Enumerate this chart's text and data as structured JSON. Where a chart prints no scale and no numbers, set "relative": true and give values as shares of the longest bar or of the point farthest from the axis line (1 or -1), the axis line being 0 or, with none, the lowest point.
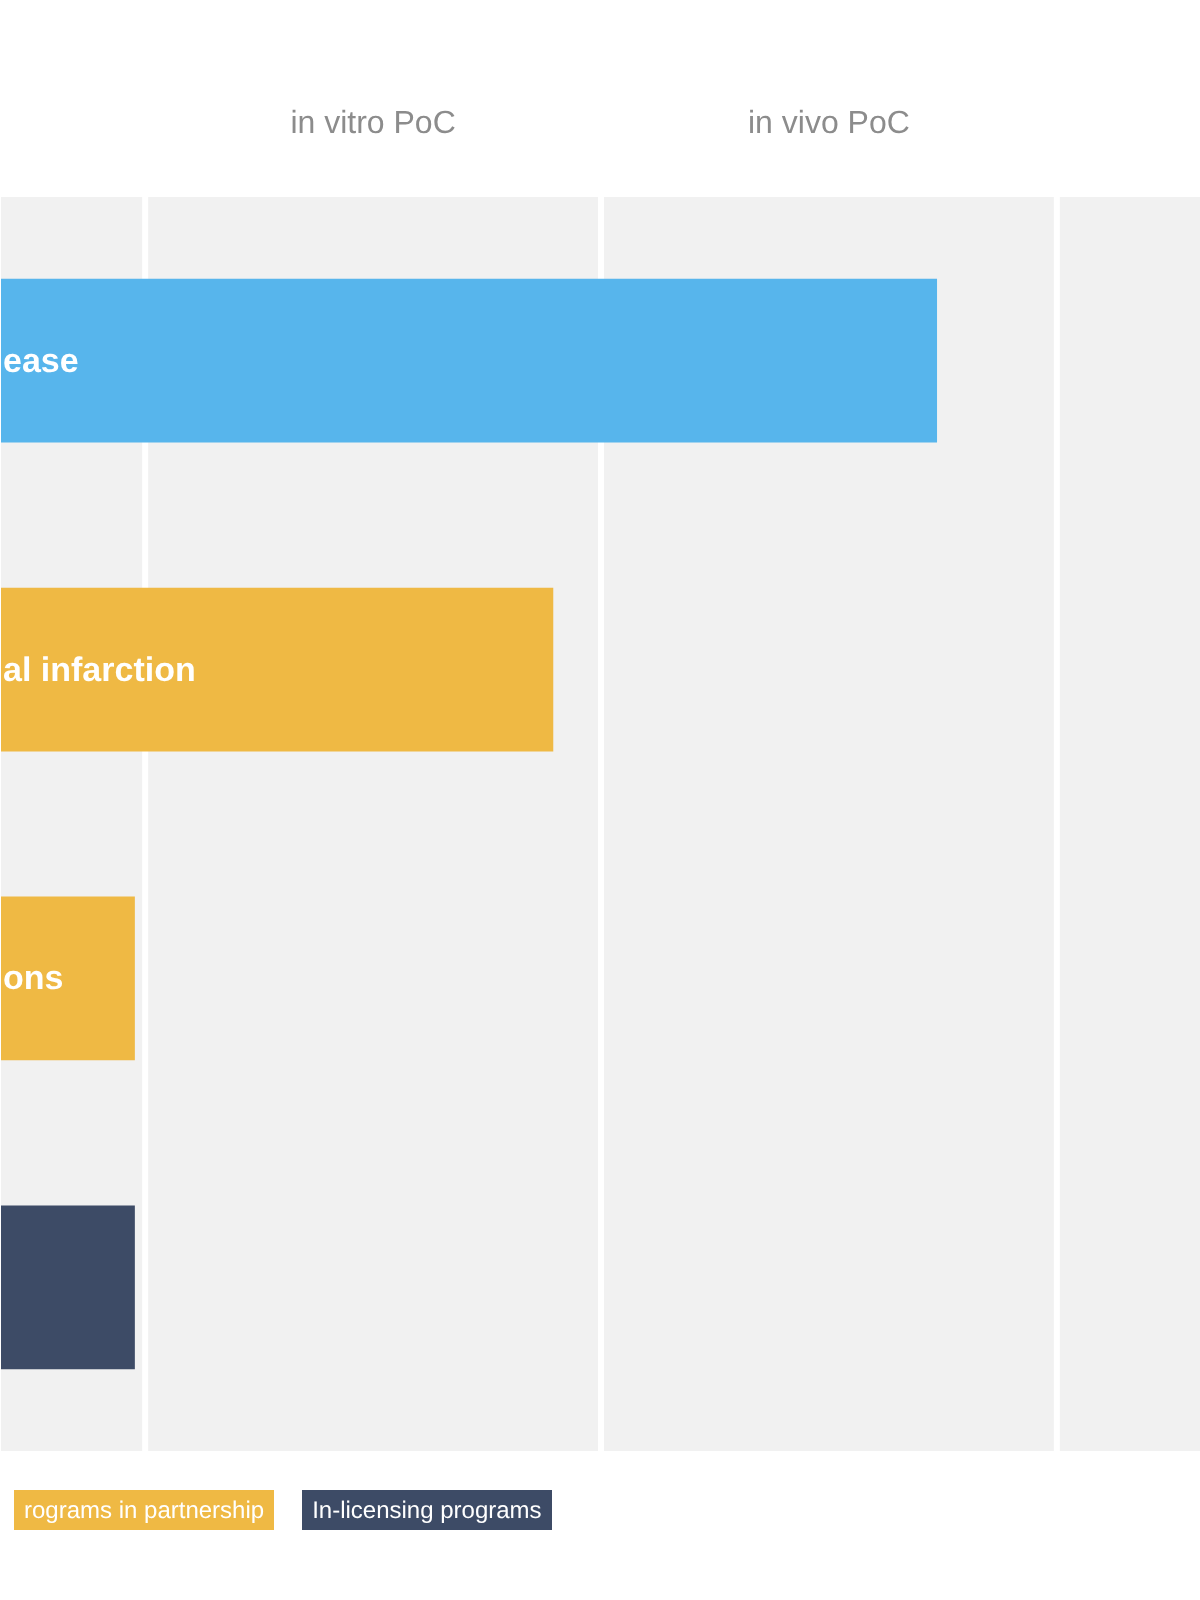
{
  "chart_data": {
    "type": "bar",
    "orientation": "horizontal",
    "relative": true,
    "categories": [
      "ease",
      "al infarction",
      "ons",
      null
    ],
    "series": [
      {
        "color": "#57b5ec",
        "values": [
          1,
          null,
          null,
          null
        ]
      },
      {
        "name": "rograms in partnership",
        "color": "#efb944",
        "values": [
          null,
          0.59,
          0.143,
          null
        ]
      },
      {
        "name": "In-licensing programs",
        "color": "#3d4b66",
        "values": [
          null,
          null,
          null,
          0.143
        ]
      }
    ],
    "ref_lines": [
      {
        "axis": "x",
        "value": 0.154,
        "color": "#ffffff"
      },
      {
        "axis": "x",
        "value": 0.641,
        "color": "#ffffff"
      },
      {
        "axis": "x",
        "value": 1.128,
        "color": "#ffffff"
      }
    ],
    "annotations": [
      "in vitro PoC",
      "in vivo PoC"
    ],
    "legend": "bottom"
  }
}
